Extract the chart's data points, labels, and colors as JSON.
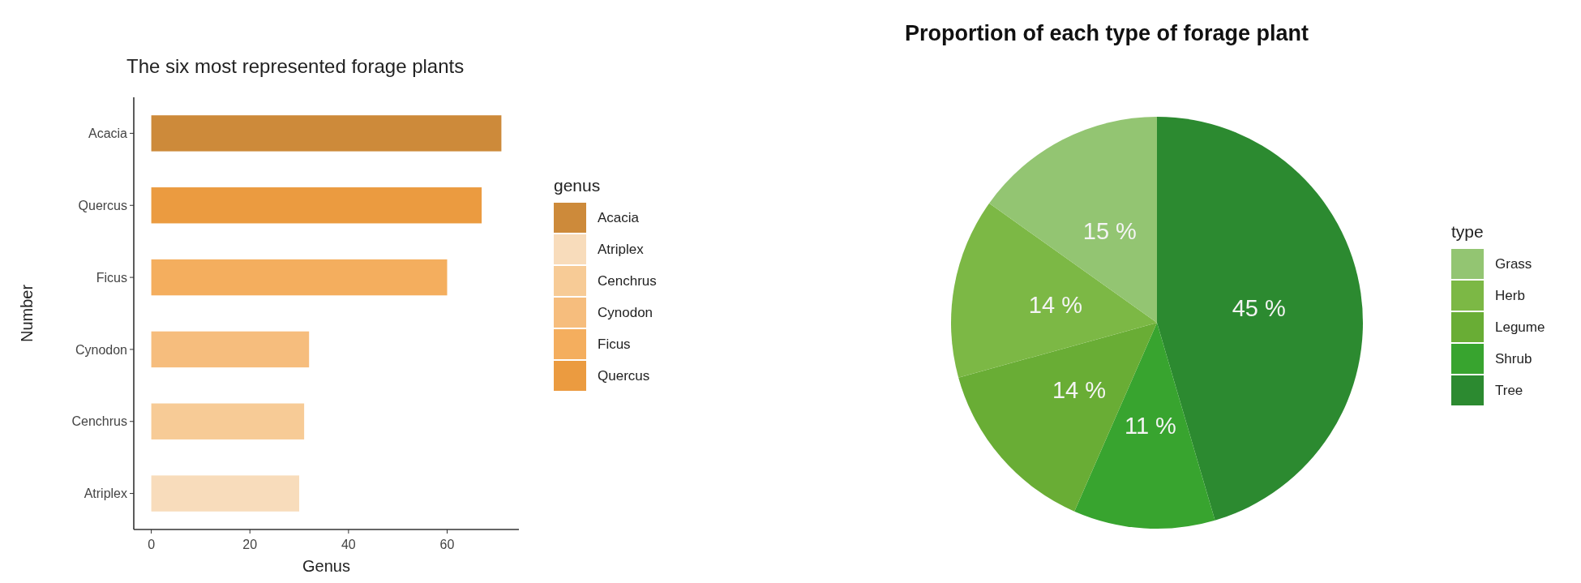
{
  "chart_data": [
    {
      "type": "bar",
      "orientation": "horizontal",
      "title": "The six most represented forage plants",
      "xlabel": "Genus",
      "ylabel": "Number",
      "legend_title": "genus",
      "legend": "right",
      "categories": [
        "Acacia",
        "Quercus",
        "Ficus",
        "Cynodon",
        "Cenchrus",
        "Atriplex"
      ],
      "series": [
        {
          "name": "Acacia",
          "color": "#cd8a3a",
          "values": [
            71,
            null,
            null,
            null,
            null,
            null
          ]
        },
        {
          "name": "Atriplex",
          "color": "#f8dcbb",
          "values": [
            null,
            null,
            null,
            null,
            null,
            30
          ]
        },
        {
          "name": "Cenchrus",
          "color": "#f7cb96",
          "values": [
            null,
            null,
            null,
            null,
            31,
            null
          ]
        },
        {
          "name": "Cynodon",
          "color": "#f6bd7d",
          "values": [
            null,
            null,
            null,
            32,
            null,
            null
          ]
        },
        {
          "name": "Ficus",
          "color": "#f4ae5e",
          "values": [
            null,
            null,
            60,
            null,
            null,
            null
          ]
        },
        {
          "name": "Quercus",
          "color": "#eb9b40",
          "values": [
            null,
            67,
            null,
            null,
            null,
            null
          ]
        }
      ],
      "xlim": [
        -3.55,
        74.55
      ],
      "xticks": [
        0,
        20,
        40,
        60
      ]
    },
    {
      "type": "pie",
      "title": "Proportion of each type of forage plant",
      "legend_title": "type",
      "legend": "right",
      "categories": [
        "Grass",
        "Herb",
        "Legume",
        "Shrub",
        "Tree"
      ],
      "values": [
        15,
        14,
        14,
        11,
        45
      ],
      "value_labels": [
        "15 %",
        "14 %",
        "14 %",
        "11 %",
        "45 %"
      ],
      "colors": [
        "#93c572",
        "#7cb845",
        "#69ad35",
        "#38a42f",
        "#2c8a30"
      ]
    }
  ]
}
